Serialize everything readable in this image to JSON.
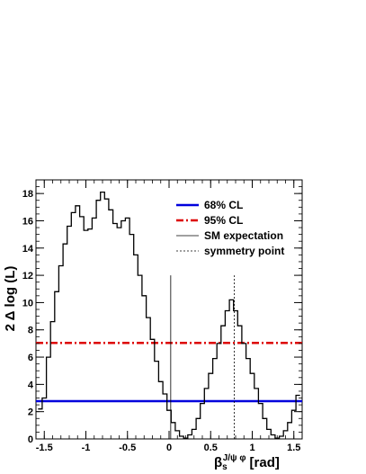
{
  "chart_data": {
    "type": "line",
    "xlabel_main": "β",
    "xlabel_sub": "s",
    "xlabel_sup": "J/ψ φ",
    "xlabel_unit": "[rad]",
    "ylabel": "2 Δ log (L)",
    "xlim": [
      -1.6,
      1.6
    ],
    "ylim": [
      0,
      19
    ],
    "xticks": [
      -1.5,
      -1,
      -0.5,
      0,
      0.5,
      1,
      1.5
    ],
    "xtick_labels": [
      "-1.5",
      "-1",
      "-0.5",
      "0",
      "0.5",
      "1",
      "1.5"
    ],
    "yticks": [
      0,
      2,
      4,
      6,
      8,
      10,
      12,
      14,
      16,
      18
    ],
    "ytick_labels": [
      "0",
      "2",
      "4",
      "6",
      "8",
      "10",
      "12",
      "14",
      "16",
      "18"
    ],
    "series": [
      {
        "name": "",
        "color": "#000000",
        "points": [
          [
            -1.55,
            2.2
          ],
          [
            -1.5,
            3.0
          ],
          [
            -1.45,
            6.0
          ],
          [
            -1.4,
            8.6
          ],
          [
            -1.35,
            10.8
          ],
          [
            -1.3,
            12.7
          ],
          [
            -1.25,
            14.3
          ],
          [
            -1.2,
            15.6
          ],
          [
            -1.15,
            16.6
          ],
          [
            -1.1,
            17.1
          ],
          [
            -1.05,
            16.3
          ],
          [
            -1.0,
            15.3
          ],
          [
            -0.95,
            15.4
          ],
          [
            -0.9,
            16.2
          ],
          [
            -0.85,
            17.5
          ],
          [
            -0.8,
            18.1
          ],
          [
            -0.75,
            17.6
          ],
          [
            -0.7,
            16.8
          ],
          [
            -0.65,
            15.8
          ],
          [
            -0.6,
            15.5
          ],
          [
            -0.55,
            16.0
          ],
          [
            -0.5,
            16.2
          ],
          [
            -0.45,
            15.0
          ],
          [
            -0.4,
            13.5
          ],
          [
            -0.35,
            12.0
          ],
          [
            -0.3,
            10.5
          ],
          [
            -0.25,
            8.9
          ],
          [
            -0.2,
            7.3
          ],
          [
            -0.15,
            5.7
          ],
          [
            -0.1,
            4.2
          ],
          [
            -0.05,
            3.3
          ],
          [
            0.0,
            2.1
          ],
          [
            0.05,
            1.2
          ],
          [
            0.1,
            0.6
          ],
          [
            0.15,
            0.2
          ],
          [
            0.2,
            0.05
          ],
          [
            0.25,
            0.3
          ],
          [
            0.3,
            0.7
          ],
          [
            0.35,
            1.5
          ],
          [
            0.4,
            2.6
          ],
          [
            0.45,
            3.7
          ],
          [
            0.5,
            4.8
          ],
          [
            0.55,
            5.9
          ],
          [
            0.6,
            7.0
          ],
          [
            0.65,
            8.3
          ],
          [
            0.7,
            9.4
          ],
          [
            0.75,
            10.2
          ],
          [
            0.8,
            9.4
          ],
          [
            0.85,
            8.3
          ],
          [
            0.9,
            7.0
          ],
          [
            0.95,
            5.9
          ],
          [
            1.0,
            4.8
          ],
          [
            1.05,
            3.7
          ],
          [
            1.1,
            2.6
          ],
          [
            1.15,
            1.5
          ],
          [
            1.2,
            0.7
          ],
          [
            1.25,
            0.3
          ],
          [
            1.3,
            0.05
          ],
          [
            1.35,
            0.2
          ],
          [
            1.4,
            0.6
          ],
          [
            1.45,
            1.2
          ],
          [
            1.5,
            2.1
          ],
          [
            1.55,
            3.2
          ]
        ]
      }
    ],
    "hlines": [
      {
        "name": "68% CL",
        "y": 2.77,
        "color": "#0000dd",
        "style": "solid"
      },
      {
        "name": "95% CL",
        "y": 7.04,
        "color": "#dd0000",
        "style": "dashdot"
      }
    ],
    "vlines": [
      {
        "name": "SM expectation",
        "x": 0.02,
        "ymax": 12.0,
        "color": "#000000",
        "style": "solid"
      },
      {
        "name": "symmetry point",
        "x": 0.785,
        "ymax": 12.0,
        "color": "#000000",
        "style": "dotted"
      }
    ],
    "legend": {
      "placement": "top-right",
      "entries": [
        "68% CL",
        "95% CL",
        "SM expectation",
        "symmetry point"
      ]
    },
    "grid": false
  }
}
